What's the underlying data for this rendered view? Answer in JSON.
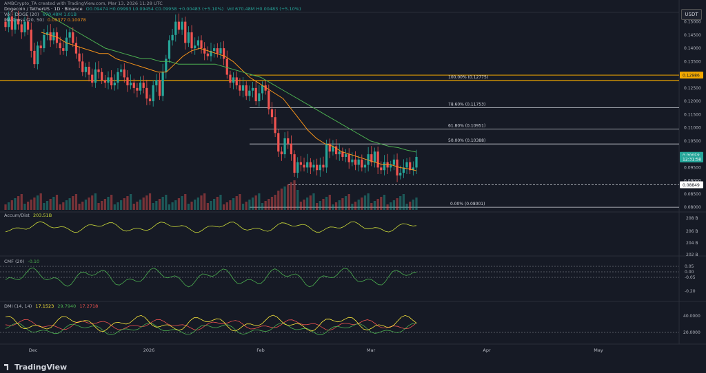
{
  "header": {
    "attribution": "AMBCrypto_TA created with TradingView.com, Mar 13, 2026 11:28 UTC",
    "symbol_line": "Dogecoin / TetherUS · 1D · Binance",
    "ohlc": "O0.09474 H0.09993 L0.09454 C0.09958 +0.00483 (+5.10%)",
    "ohlc_repeat": "Vol 670.48M H0.00483 (+5.10%)",
    "vol_label": "Vol · DOGE (20)",
    "vol_values": "670.48M  1.01B",
    "ma_label": "MA Cross (20, 50)",
    "ma_values": "0.09377  0.10078",
    "currency": "USDT"
  },
  "panes": {
    "accum": {
      "label": "Accum/Dist",
      "value": "203.51B",
      "ticks": [
        "208 B",
        "206 B",
        "204 B",
        "202 B"
      ]
    },
    "cmf": {
      "label": "CMF (20)",
      "value": "-0.10",
      "ticks": [
        "0.05",
        "0.00",
        "-0.05",
        "-0.20"
      ]
    },
    "dmi": {
      "label": "DMI (14, 14)",
      "values": [
        "17.1523",
        "29.7940",
        "17.2718"
      ],
      "ticks": [
        "40.0000",
        "20.0000"
      ]
    }
  },
  "x_axis": [
    "Dec",
    "2026",
    "Feb",
    "Mar",
    "Apr",
    "May"
  ],
  "brand": "TradingView",
  "colors": {
    "up": "#26a69a",
    "down": "#ef5350",
    "ma20": "#f7931a",
    "ma50": "#4caf50",
    "fib": "#d1d4dc",
    "fib100": "#f2a900",
    "acc": "#cddc39",
    "cmf": "#4caf50",
    "dmi_plus": "#4caf50",
    "dmi_minus": "#ef5350",
    "adx": "#ffeb3b"
  },
  "chart_data": {
    "type": "candlestick",
    "y_ticks": [
      0.15,
      0.145,
      0.14,
      0.135,
      0.13,
      0.125,
      0.12,
      0.115,
      0.11,
      0.105,
      0.1,
      0.095,
      0.09,
      0.085,
      0.08
    ],
    "y_tick_labels": [
      "0.15000",
      "0.14500",
      "0.14000",
      "0.13500",
      "0.13000",
      "0.12500",
      "0.12000",
      "0.11500",
      "0.11000",
      "0.10500",
      "0.10000",
      "0.09500",
      "0.09000",
      "0.08500",
      "0.08000"
    ],
    "ylim": [
      0.079,
      0.153
    ],
    "fib_levels": [
      {
        "label": "100.00% (0.12775)",
        "value": 0.12775
      },
      {
        "label": "78.60% (0.11753)",
        "value": 0.11753
      },
      {
        "label": "61.80% (0.10951)",
        "value": 0.10951
      },
      {
        "label": "50.00% (0.10388)",
        "value": 0.10388
      },
      {
        "label": "0.00% (0.08001)",
        "value": 0.08001
      }
    ],
    "price_labels": [
      {
        "text": "0.12986",
        "value": 0.12986
      },
      {
        "text": "0.09958",
        "value": 0.09958
      },
      {
        "text": "12:31:58",
        "value": 0.0982
      },
      {
        "text": "0.08849",
        "value": 0.08849
      }
    ],
    "closes": [
      0.148,
      0.152,
      0.147,
      0.151,
      0.149,
      0.146,
      0.15,
      0.147,
      0.139,
      0.134,
      0.141,
      0.14,
      0.145,
      0.146,
      0.143,
      0.146,
      0.142,
      0.14,
      0.139,
      0.144,
      0.146,
      0.142,
      0.138,
      0.135,
      0.131,
      0.133,
      0.13,
      0.127,
      0.132,
      0.131,
      0.128,
      0.127,
      0.129,
      0.126,
      0.127,
      0.131,
      0.132,
      0.129,
      0.126,
      0.127,
      0.125,
      0.124,
      0.127,
      0.125,
      0.121,
      0.12,
      0.126,
      0.128,
      0.122,
      0.131,
      0.136,
      0.143,
      0.145,
      0.15,
      0.147,
      0.15,
      0.142,
      0.146,
      0.14,
      0.141,
      0.143,
      0.14,
      0.138,
      0.137,
      0.139,
      0.14,
      0.138,
      0.14,
      0.136,
      0.13,
      0.127,
      0.129,
      0.126,
      0.124,
      0.126,
      0.122,
      0.124,
      0.125,
      0.12,
      0.123,
      0.126,
      0.124,
      0.117,
      0.114,
      0.108,
      0.101,
      0.1,
      0.106,
      0.104,
      0.1,
      0.093,
      0.097,
      0.096,
      0.095,
      0.097,
      0.095,
      0.096,
      0.094,
      0.096,
      0.095,
      0.104,
      0.101,
      0.103,
      0.1,
      0.101,
      0.099,
      0.1,
      0.097,
      0.098,
      0.096,
      0.098,
      0.095,
      0.096,
      0.1,
      0.097,
      0.101,
      0.095,
      0.094,
      0.097,
      0.095,
      0.096,
      0.098,
      0.092,
      0.093,
      0.095,
      0.097,
      0.094,
      0.095,
      0.099
    ],
    "ma20": [
      0.146,
      0.145,
      0.144,
      0.142,
      0.141,
      0.14,
      0.139,
      0.138,
      0.138,
      0.136,
      0.135,
      0.134,
      0.133,
      0.132,
      0.131,
      0.131,
      0.134,
      0.137,
      0.139,
      0.14,
      0.139,
      0.138,
      0.137,
      0.135,
      0.132,
      0.129,
      0.127,
      0.125,
      0.123,
      0.121,
      0.117,
      0.113,
      0.109,
      0.106,
      0.104,
      0.103,
      0.101,
      0.1,
      0.099,
      0.098,
      0.097,
      0.096,
      0.096,
      0.095,
      0.0945,
      0.0938
    ],
    "ma50": [
      0.154,
      0.152,
      0.15,
      0.148,
      0.146,
      0.144,
      0.142,
      0.14,
      0.139,
      0.138,
      0.137,
      0.136,
      0.136,
      0.135,
      0.135,
      0.134,
      0.134,
      0.134,
      0.134,
      0.134,
      0.133,
      0.132,
      0.131,
      0.13,
      0.129,
      0.127,
      0.125,
      0.123,
      0.121,
      0.119,
      0.117,
      0.115,
      0.113,
      0.111,
      0.109,
      0.107,
      0.105,
      0.104,
      0.103,
      0.1025,
      0.1015,
      0.1008
    ]
  }
}
